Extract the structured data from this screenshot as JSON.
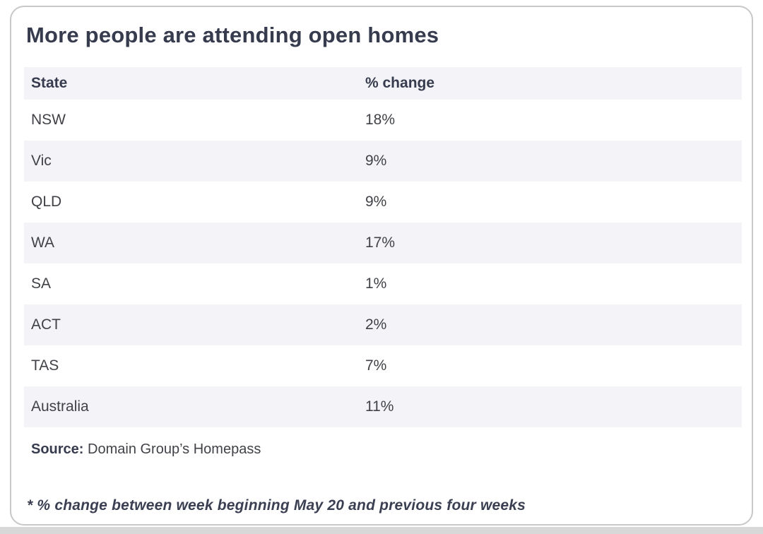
{
  "title": "More people are attending open homes",
  "table": {
    "columns": [
      {
        "label": "State"
      },
      {
        "label": "% change"
      }
    ],
    "rows": [
      {
        "state": "NSW",
        "change": "18%"
      },
      {
        "state": "Vic",
        "change": "9%"
      },
      {
        "state": "QLD",
        "change": "9%"
      },
      {
        "state": "WA",
        "change": "17%"
      },
      {
        "state": "SA",
        "change": "1%"
      },
      {
        "state": "ACT",
        "change": "2%"
      },
      {
        "state": "TAS",
        "change": "7%"
      },
      {
        "state": "Australia",
        "change": "11%"
      }
    ]
  },
  "source": {
    "label": "Source:",
    "text": " Domain Group’s Homepass"
  },
  "footnote": "* % change between week beginning May 20 and previous four weeks",
  "colors": {
    "heading_text": "#363b4d",
    "row_text": "#404247",
    "stripe": "#f4f4f8",
    "card_border": "#c7c8ca",
    "bottom_strip": "#d8d8d9"
  },
  "chart_data": {
    "type": "table",
    "title": "More people are attending open homes",
    "columns": [
      "State",
      "% change"
    ],
    "categories": [
      "NSW",
      "Vic",
      "QLD",
      "WA",
      "SA",
      "ACT",
      "TAS",
      "Australia"
    ],
    "values": [
      18,
      9,
      9,
      17,
      1,
      2,
      7,
      11
    ],
    "unit": "%",
    "source": "Domain Group’s Homepass",
    "note": "* % change between week beginning May 20 and previous four weeks"
  }
}
